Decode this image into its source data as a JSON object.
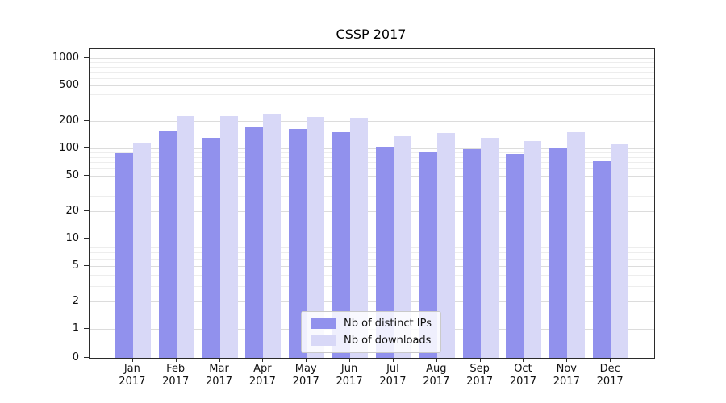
{
  "chart_data": {
    "type": "bar",
    "title": "CSSP 2017",
    "categories": [
      "Jan 2017",
      "Feb 2017",
      "Mar 2017",
      "Apr 2017",
      "May 2017",
      "Jun 2017",
      "Jul 2017",
      "Aug 2017",
      "Sep 2017",
      "Oct 2017",
      "Nov 2017",
      "Dec 2017"
    ],
    "series": [
      {
        "name": "Nb of distinct IPs",
        "color": "#9191ed",
        "values": [
          88,
          155,
          130,
          170,
          163,
          152,
          103,
          93,
          97,
          87,
          100,
          72
        ]
      },
      {
        "name": "Nb of downloads",
        "color": "#d8d8f7",
        "values": [
          113,
          228,
          228,
          235,
          222,
          216,
          136,
          149,
          131,
          121,
          151,
          110
        ]
      }
    ],
    "yscale": "symlog",
    "yticks": [
      0,
      1,
      2,
      5,
      10,
      20,
      50,
      100,
      200,
      500,
      1000
    ],
    "ylim": [
      0,
      1250
    ],
    "xlabel": "",
    "ylabel": "",
    "grid": "both",
    "legend_position": "lower center",
    "colors": {
      "major_gridline": "#dcdcdc",
      "minor_gridline": "#ededed",
      "axis": "#2b2b2b",
      "text": "#111111",
      "background": "#ffffff"
    }
  }
}
